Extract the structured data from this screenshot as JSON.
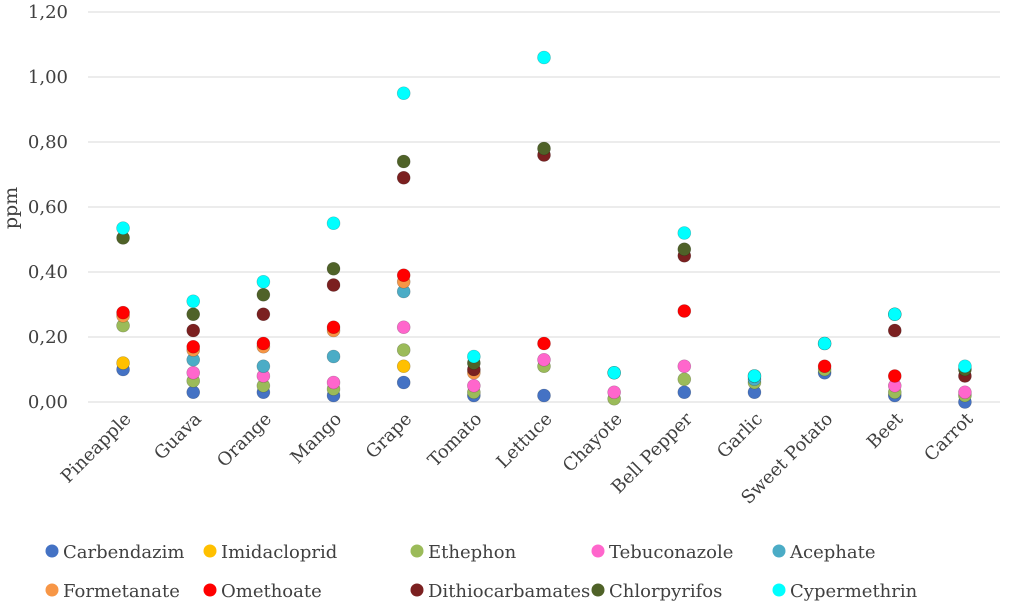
{
  "chart_data": {
    "type": "scatter",
    "title": "",
    "xlabel": "",
    "ylabel": "ppm",
    "ylim": [
      0,
      1.2
    ],
    "y_ticks": [
      "0,00",
      "0,20",
      "0,40",
      "0,60",
      "0,80",
      "1,00",
      "1,20"
    ],
    "grid": true,
    "legend_position": "bottom",
    "categories": [
      "Pineapple",
      "Guava",
      "Orange",
      "Mango",
      "Grape",
      "Tomato",
      "Lettuce",
      "Chayote",
      "Bell Pepper",
      "Garlic",
      "Sweet Potato",
      "Beet",
      "Carrot"
    ],
    "series": [
      {
        "name": "Carbendazim",
        "color": "#4472c4",
        "values": [
          0.1,
          0.03,
          0.03,
          0.02,
          0.06,
          0.02,
          0.02,
          null,
          0.03,
          0.03,
          0.09,
          0.02,
          0.0
        ]
      },
      {
        "name": "Imidacloprid",
        "color": "#ffc000",
        "values": [
          0.12,
          null,
          null,
          null,
          0.11,
          null,
          null,
          null,
          null,
          null,
          null,
          null,
          null
        ]
      },
      {
        "name": "Ethephon",
        "color": "#9bbb59",
        "values": [
          0.235,
          0.065,
          0.05,
          0.04,
          0.16,
          0.03,
          0.11,
          0.01,
          0.07,
          0.06,
          0.1,
          0.03,
          0.02
        ]
      },
      {
        "name": "Tebuconazole",
        "color": "#ff66cc",
        "values": [
          null,
          0.09,
          0.08,
          0.06,
          0.23,
          0.05,
          0.13,
          0.03,
          0.11,
          null,
          null,
          0.05,
          0.03
        ]
      },
      {
        "name": "Acephate",
        "color": "#4bacc6",
        "values": [
          null,
          0.13,
          0.11,
          0.14,
          0.34,
          null,
          null,
          null,
          null,
          0.07,
          null,
          null,
          null
        ]
      },
      {
        "name": "Formetanate",
        "color": "#f79646",
        "values": [
          0.265,
          0.16,
          0.17,
          0.22,
          0.37,
          0.09,
          null,
          null,
          null,
          null,
          null,
          null,
          null
        ]
      },
      {
        "name": "Omethoate",
        "color": "#ff0000",
        "values": [
          0.275,
          0.17,
          0.18,
          0.23,
          0.39,
          null,
          0.18,
          null,
          0.28,
          null,
          0.11,
          0.08,
          null
        ]
      },
      {
        "name": "Dithiocarbamates",
        "color": "#7b2020",
        "values": [
          null,
          0.22,
          0.27,
          0.36,
          0.69,
          0.1,
          0.76,
          null,
          0.45,
          null,
          null,
          0.22,
          0.08
        ]
      },
      {
        "name": "Chlorpyrifos",
        "color": "#4f6228",
        "values": [
          0.505,
          0.27,
          0.33,
          0.41,
          0.74,
          0.12,
          0.78,
          0.09,
          0.47,
          0.08,
          0.18,
          0.27,
          0.1
        ]
      },
      {
        "name": "Cypermethrin",
        "color": "#00ffff",
        "values": [
          0.535,
          0.31,
          0.37,
          0.55,
          0.95,
          0.14,
          1.06,
          0.09,
          0.52,
          0.08,
          0.18,
          0.27,
          0.11
        ]
      }
    ]
  }
}
